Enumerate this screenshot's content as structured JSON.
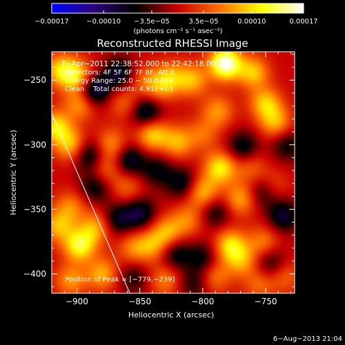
{
  "chart_data": {
    "type": "heatmap",
    "title": "Reconstructed RHESSI Image",
    "xlabel": "Heliocentric X (arcsec)",
    "ylabel": "Heliocentric Y (arcsec)",
    "xlim": [
      -920,
      -727
    ],
    "ylim": [
      -415,
      -228
    ],
    "xticks": [
      -900,
      -850,
      -800,
      -750
    ],
    "yticks": [
      -250,
      -300,
      -350,
      -400
    ],
    "xtick_labels": [
      "−900",
      "−850",
      "−800",
      "−750"
    ],
    "ytick_labels": [
      "−250",
      "−300",
      "−350",
      "−400"
    ],
    "colorbar": {
      "range": [
        -0.00017,
        0.00017
      ],
      "ticks": [
        -0.00017,
        -0.0001,
        -3.5e-05,
        3.5e-05,
        0.0001,
        0.00017
      ],
      "tick_labels": [
        "−0.00017",
        "−0.00010",
        "−3.5e−05",
        "3.5e−05",
        "0.00010",
        "0.00017"
      ],
      "units_label": "(photons cm⁻² s⁻¹ asec⁻²)",
      "stops": [
        "#0000ff",
        "#2a007a",
        "#000000",
        "#c80000",
        "#ff7000",
        "#ffff00",
        "#ffffff"
      ]
    },
    "annotations": [
      "7−Apr−2011 22:38:52.000 to 22:42:18.000",
      "Detectors: 4F 5F 6F 7F 8F, Att 0",
      "Energy Range: 25.0 − 50.0 keV",
      "Clean    Total counts: 4.91E+03"
    ],
    "peak_label": "Position of Peak = [−779,−239]",
    "peak": {
      "x": -779,
      "y": -239
    },
    "limb_line": {
      "x": [
        -920,
        -858
      ],
      "y": [
        -276,
        -415
      ]
    },
    "grid": false,
    "field_sigma": 9,
    "sources": [
      {
        "x": -782,
        "y": -237,
        "v": 0.00017
      },
      {
        "x": -808,
        "y": -250,
        "v": 8e-05
      },
      {
        "x": -760,
        "y": -244,
        "v": 9e-05
      },
      {
        "x": -900,
        "y": -247,
        "v": 0.0001
      },
      {
        "x": -897,
        "y": -268,
        "v": 8e-05
      },
      {
        "x": -913,
        "y": -242,
        "v": 9e-05
      },
      {
        "x": -866,
        "y": -245,
        "v": -8e-05
      },
      {
        "x": -848,
        "y": -250,
        "v": 4e-05
      },
      {
        "x": -887,
        "y": -258,
        "v": -0.00011
      },
      {
        "x": -845,
        "y": -275,
        "v": -9e-05
      },
      {
        "x": -835,
        "y": -255,
        "v": 6e-05
      },
      {
        "x": -825,
        "y": -248,
        "v": 7e-05
      },
      {
        "x": -862,
        "y": -268,
        "v": 5e-05
      },
      {
        "x": -840,
        "y": -292,
        "v": 0.0001
      },
      {
        "x": -820,
        "y": -298,
        "v": 8e-05
      },
      {
        "x": -800,
        "y": -292,
        "v": 5e-05
      },
      {
        "x": -788,
        "y": -274,
        "v": 7e-05
      },
      {
        "x": -786,
        "y": -318,
        "v": 0.00011
      },
      {
        "x": -768,
        "y": -302,
        "v": -7e-05
      },
      {
        "x": -750,
        "y": -268,
        "v": 9e-05
      },
      {
        "x": -742,
        "y": -283,
        "v": 8e-05
      },
      {
        "x": -733,
        "y": -300,
        "v": -6e-05
      },
      {
        "x": -905,
        "y": -300,
        "v": 9e-05
      },
      {
        "x": -917,
        "y": -286,
        "v": 0.0001
      },
      {
        "x": -890,
        "y": -308,
        "v": -8e-05
      },
      {
        "x": -873,
        "y": -300,
        "v": 7e-05
      },
      {
        "x": -858,
        "y": -312,
        "v": -8e-05
      },
      {
        "x": -878,
        "y": -320,
        "v": 6e-05
      },
      {
        "x": -885,
        "y": -332,
        "v": -7e-05
      },
      {
        "x": -860,
        "y": -333,
        "v": 5e-05
      },
      {
        "x": -836,
        "y": -320,
        "v": -6e-05
      },
      {
        "x": -816,
        "y": -330,
        "v": -7e-05
      },
      {
        "x": -800,
        "y": -337,
        "v": 9e-05
      },
      {
        "x": -812,
        "y": -358,
        "v": 6e-05
      },
      {
        "x": -790,
        "y": -352,
        "v": -6e-05
      },
      {
        "x": -770,
        "y": -342,
        "v": 8e-05
      },
      {
        "x": -752,
        "y": -336,
        "v": -7e-05
      },
      {
        "x": -745,
        "y": -332,
        "v": 5e-05
      },
      {
        "x": -736,
        "y": -355,
        "v": -8e-05
      },
      {
        "x": -762,
        "y": -318,
        "v": 5e-05
      },
      {
        "x": -905,
        "y": -348,
        "v": 6e-05
      },
      {
        "x": -915,
        "y": -363,
        "v": 8e-05
      },
      {
        "x": -898,
        "y": -378,
        "v": 0.00012
      },
      {
        "x": -885,
        "y": -364,
        "v": 8e-05
      },
      {
        "x": -868,
        "y": -358,
        "v": -7e-05
      },
      {
        "x": -850,
        "y": -353,
        "v": -8e-05
      },
      {
        "x": -855,
        "y": -380,
        "v": 6e-05
      },
      {
        "x": -840,
        "y": -378,
        "v": 7e-05
      },
      {
        "x": -828,
        "y": -368,
        "v": 8e-05
      },
      {
        "x": -822,
        "y": -384,
        "v": -7e-05
      },
      {
        "x": -800,
        "y": -388,
        "v": -6e-05
      },
      {
        "x": -778,
        "y": -378,
        "v": 0.0001
      },
      {
        "x": -769,
        "y": -390,
        "v": 7e-05
      },
      {
        "x": -752,
        "y": -375,
        "v": 6e-05
      },
      {
        "x": -746,
        "y": -392,
        "v": -6e-05
      },
      {
        "x": -735,
        "y": -402,
        "v": 5e-05
      },
      {
        "x": -905,
        "y": -405,
        "v": 7e-05
      },
      {
        "x": -880,
        "y": -400,
        "v": 8e-05
      },
      {
        "x": -855,
        "y": -403,
        "v": -5e-05
      },
      {
        "x": -830,
        "y": -405,
        "v": 6e-05
      },
      {
        "x": -807,
        "y": -408,
        "v": -5e-05
      },
      {
        "x": -790,
        "y": -402,
        "v": 6e-05
      },
      {
        "x": -755,
        "y": -408,
        "v": 5e-05
      }
    ]
  },
  "timestamp": "6−Aug−2013 21:04"
}
